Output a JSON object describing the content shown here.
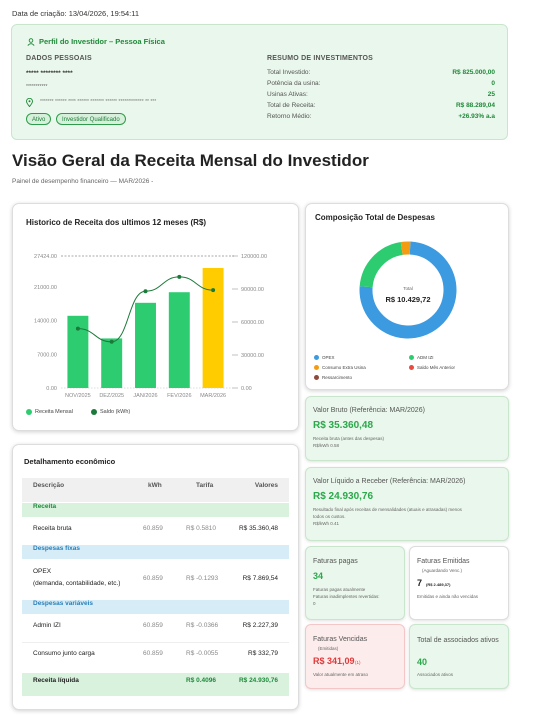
{
  "created_label": "Data de criação: 13/04/2026, 19:54:11",
  "profile": {
    "title": "Perfil do Investidor – Pessoa Física",
    "personal_header": "DADOS PESSOAIS",
    "name_masked": "***** ******** ****",
    "doc_masked": "***********",
    "address_masked": "******* ****** **** ****** ******* ****** ************* ** ***",
    "badges": [
      "Ativo",
      "Investidor Qualificado"
    ],
    "summary_header": "RESUMO DE INVESTIMENTOS",
    "summary": [
      {
        "label": "Total Investido:",
        "value": "R$ 825.000,00"
      },
      {
        "label": "Potência da usina:",
        "value": "0"
      },
      {
        "label": "Usinas Ativas:",
        "value": "25"
      },
      {
        "label": "Total de Receita:",
        "value": "R$ 88.289,04"
      },
      {
        "label": "Retorno Médio:",
        "value": "+26.93% a.a"
      }
    ]
  },
  "page_title": "Visão Geral da Receita Mensal do Investidor",
  "page_subtitle": "Painel de desempenho financeiro — MAR/2026 -",
  "chart_title": "Historico de Receita dos ultimos 12 meses (R$)",
  "chart_data": {
    "type": "bar",
    "categories": [
      "NOV/2025",
      "DEZ/2025",
      "JAN/2026",
      "FEV/2026",
      "MAR/2026"
    ],
    "series": [
      {
        "name": "Receita Mensal",
        "values": [
          15000,
          10300,
          17700,
          19900,
          24930.76
        ]
      },
      {
        "name": "Saldo (kWh)",
        "values": [
          54000,
          42000,
          88000,
          101000,
          89000
        ]
      }
    ],
    "ylim_left": [
      0,
      27424
    ],
    "yticks_left": [
      "0.00",
      "7000.00",
      "14000.00",
      "21000.00",
      "27424.00"
    ],
    "ylim_right": [
      0,
      120000
    ],
    "yticks_right": [
      "0.00",
      "30000.00",
      "60000.00",
      "90000.00",
      "120000.00"
    ],
    "colors": {
      "bar": "#2ecc71",
      "bar_current": "#ffcc00",
      "line": "#1a7a3a"
    },
    "legend": "bottom-left"
  },
  "donut": {
    "title": "Composição Total de Despesas",
    "center_label": "Total",
    "center_value": "R$ 10.429,72",
    "slices": [
      {
        "name": "OPEX",
        "value": 7869.54,
        "color": "#3b9ae0"
      },
      {
        "name": "ADM IZI",
        "value": 2227.39,
        "color": "#2ecc71"
      },
      {
        "name": "Consumo Extra Usina",
        "value": 332.79,
        "color": "#f39c12"
      },
      {
        "name": "Saldo Mês Anterior",
        "value": 0,
        "color": "#e74c3c"
      },
      {
        "name": "Ressarcimento",
        "value": 0,
        "color": "#8e4b3b"
      }
    ]
  },
  "valor_bruto": {
    "title": "Valor Bruto (Referência: MAR/2026)",
    "value": "R$ 35.360,48",
    "sub1": "Receita bruta (antes das despesas)",
    "sub2": "R$/kWh 0.58"
  },
  "valor_liquido": {
    "title": "Valor Líquido a Receber (Referência: MAR/2026)",
    "value": "R$ 24.930,76",
    "sub1": "Resultado final após receitas de mensalidades (atuais e atrasadas) menos",
    "sub2": "todos os custos.",
    "sub3": "R$/kWh 0.41"
  },
  "faturas_pagas": {
    "title": "Faturas pagas",
    "value": "34",
    "sub1": "Faturas pagas atualmente",
    "sub2": "Faturas inadimplentes revertidas:",
    "sub3": "0"
  },
  "faturas_emitidas": {
    "title": "Faturas Emitidas",
    "subtitle": "(Aguardando Venc.)",
    "value": "7",
    "value_extra": "(R$ 2.489,37)",
    "sub1": "Emitidas e ainda não vencidas"
  },
  "faturas_vencidas": {
    "title": "Faturas Vencidas",
    "subtitle": "(Emitidas)",
    "value": "R$ 341,09",
    "value_extra": "(1)",
    "sub1": "Valor atualmente em atraso"
  },
  "associados": {
    "title": "Total de associados ativos",
    "value": "40",
    "sub1": "Associados ativos"
  },
  "detail": {
    "title": "Detalhamento econômico",
    "headers": [
      "Descrição",
      "kWh",
      "Tarifa",
      "Valores"
    ],
    "sec_receita": "Receita",
    "receita_bruta": [
      "Receita bruta",
      "60.859",
      "R$ 0.5810",
      "R$ 35.360,48"
    ],
    "sec_fixas": "Despesas fixas",
    "opex_1": "OPEX",
    "opex_2": "(demanda, contabilidade, etc.)",
    "opex_vals": [
      "60.859",
      "R$ -0.1293",
      "R$ 7.869,54"
    ],
    "sec_variaveis": "Despesas variáveis",
    "admin": [
      "Admin IZI",
      "60.859",
      "R$ -0.0366",
      "R$ 2.227,39"
    ],
    "consumo": [
      "Consumo junto carga",
      "60.859",
      "R$ -0.0055",
      "R$ 332,79"
    ],
    "liquida": [
      "Receita líquida",
      "",
      "R$ 0.4096",
      "R$ 24.930,76"
    ]
  }
}
